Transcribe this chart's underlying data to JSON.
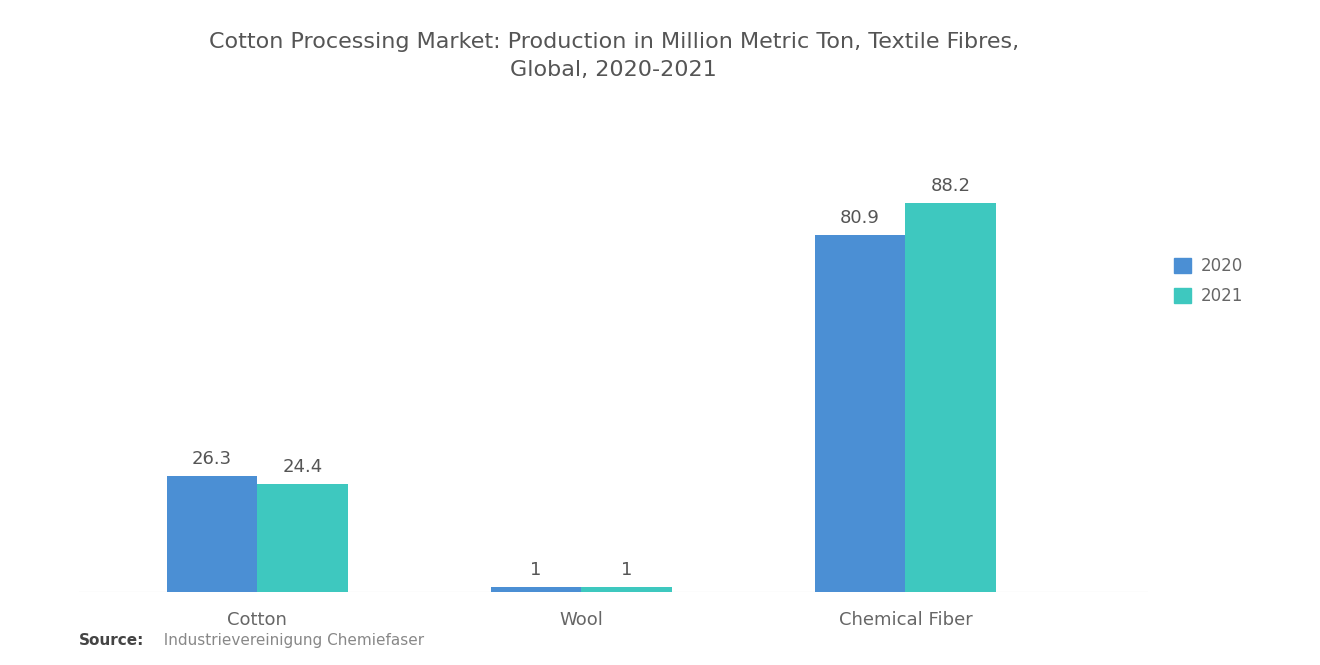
{
  "title": "Cotton Processing Market: Production in Million Metric Ton, Textile Fibres,\nGlobal, 2020-2021",
  "categories": [
    "Cotton",
    "Wool",
    "Chemical Fiber"
  ],
  "values_2020": [
    26.3,
    1,
    80.9
  ],
  "values_2021": [
    24.4,
    1,
    88.2
  ],
  "color_2020": "#4B8FD4",
  "color_2021": "#3EC8BF",
  "background_color": "#ffffff",
  "legend_labels": [
    "2020",
    "2021"
  ],
  "source_bold": "Source:",
  "source_rest": "  Industrievereinigung Chemiefaser",
  "bar_width": 0.28,
  "ylim": [
    0,
    110
  ],
  "title_fontsize": 16,
  "label_fontsize": 12,
  "tick_fontsize": 13,
  "annotation_fontsize": 13,
  "annotation_color": "#555555",
  "tick_color": "#666666"
}
